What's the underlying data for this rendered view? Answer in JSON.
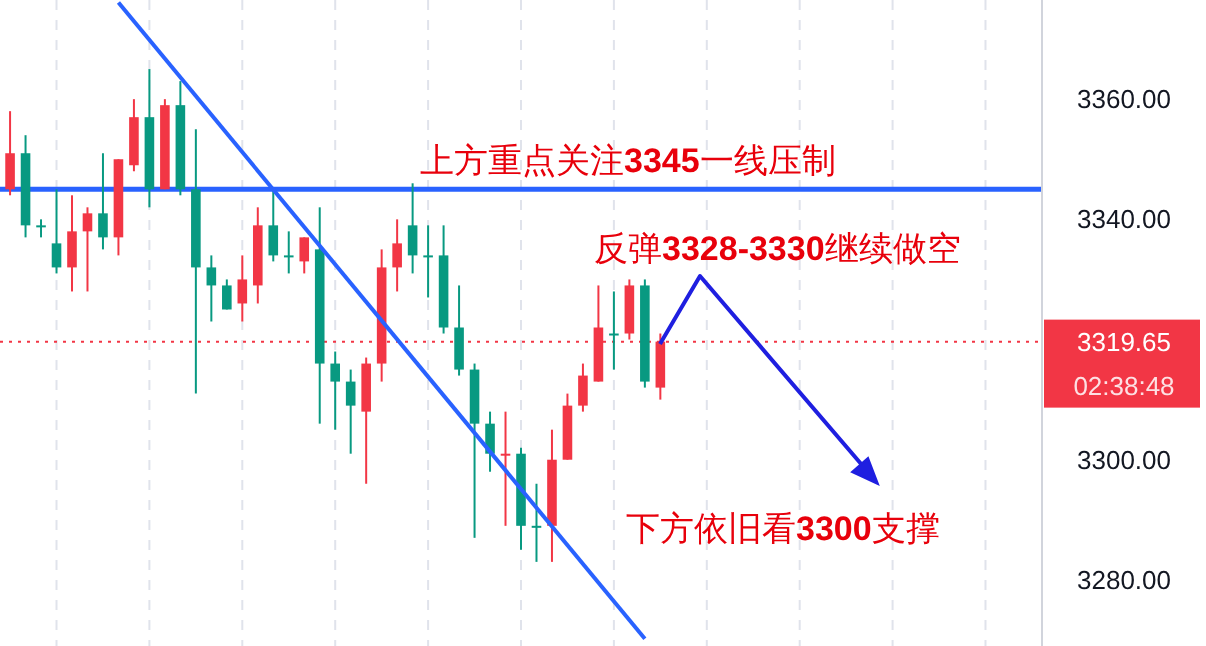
{
  "chart_data": {
    "type": "candlestick",
    "categories": [
      null,
      null,
      null,
      null,
      null,
      null,
      null,
      null,
      null,
      null,
      null,
      null,
      null,
      null,
      null,
      null,
      null,
      null,
      null,
      null,
      null,
      null,
      null,
      null,
      null,
      null,
      null,
      null,
      null,
      null,
      null,
      null,
      null,
      null,
      null,
      null,
      null,
      null,
      null,
      null,
      null,
      null,
      null,
      null,
      null,
      null,
      null,
      null,
      null,
      null,
      null,
      null,
      null,
      null,
      null,
      null,
      null,
      null,
      null,
      null,
      null,
      null,
      null,
      null,
      null,
      null,
      null
    ],
    "ohlc": [
      [
        3345,
        3358,
        3344,
        3351
      ],
      [
        3351,
        3354,
        3337,
        3339
      ],
      [
        3339,
        3340,
        3337,
        3339
      ],
      [
        3336,
        3345,
        3331,
        3332
      ],
      [
        3332,
        3344,
        3328,
        3338
      ],
      [
        3338,
        3342,
        3328,
        3341
      ],
      [
        3341,
        3351,
        3335,
        3337
      ],
      [
        3337,
        3350,
        3334,
        3350
      ],
      [
        3349,
        3360,
        3348,
        3357
      ],
      [
        3357,
        3365,
        3342,
        3345
      ],
      [
        3345,
        3360,
        3345,
        3359
      ],
      [
        3359,
        3363,
        3344,
        3345
      ],
      [
        3345,
        3355,
        3311,
        3332
      ],
      [
        3332,
        3334,
        3323,
        3329
      ],
      [
        3329,
        3330,
        3325,
        3325
      ],
      [
        3326,
        3334,
        3323,
        3330
      ],
      [
        3329,
        3342,
        3326,
        3339
      ],
      [
        3339,
        3345,
        3333,
        3334
      ],
      [
        3334,
        3338,
        3331,
        3334
      ],
      [
        3333,
        3337,
        3331,
        3337
      ],
      [
        3335,
        3342,
        3306,
        3316
      ],
      [
        3316,
        3318,
        3305,
        3313
      ],
      [
        3313,
        3315,
        3301,
        3309
      ],
      [
        3308,
        3317,
        3296,
        3316
      ],
      [
        3316,
        3335,
        3313,
        3332
      ],
      [
        3332,
        3340,
        3328,
        3336
      ],
      [
        3339,
        3346,
        3331,
        3334
      ],
      [
        3334,
        3339,
        3327,
        3334
      ],
      [
        3334,
        3339,
        3321,
        3322
      ],
      [
        3322,
        3329,
        3314,
        3315
      ],
      [
        3315,
        3316,
        3287,
        3306
      ],
      [
        3306,
        3308,
        3298,
        3301
      ],
      [
        3301,
        3308,
        3289,
        3301
      ],
      [
        3301,
        3302,
        3285,
        3289
      ],
      [
        3289,
        3296,
        3283,
        3289
      ],
      [
        3289,
        3305,
        3283,
        3300
      ],
      [
        3300,
        3311,
        3300,
        3309
      ],
      [
        3309,
        3316,
        3308,
        3314
      ],
      [
        3313,
        3329,
        3313,
        3322
      ],
      [
        3321,
        3328,
        3315,
        3321
      ],
      [
        3321,
        3330,
        3320,
        3329
      ],
      [
        3329,
        3330,
        3312,
        3313
      ],
      [
        3312,
        3321,
        3310,
        3319.65
      ],
      null,
      null,
      null,
      null,
      null,
      null,
      null,
      null,
      null,
      null,
      null,
      null,
      null,
      null,
      null,
      null,
      null,
      null,
      null,
      null,
      null,
      null,
      null,
      null
    ],
    "colors": [
      "#f23645",
      "#089981",
      "#089981",
      "#089981",
      "#f23645",
      "#f23645",
      "#089981",
      "#f23645",
      "#f23645",
      "#089981",
      "#f23645",
      "#089981",
      "#089981",
      "#089981",
      "#089981",
      "#f23645",
      "#f23645",
      "#089981",
      "#089981",
      "#f23645",
      "#089981",
      "#089981",
      "#089981",
      "#f23645",
      "#f23645",
      "#f23645",
      "#089981",
      "#089981",
      "#089981",
      "#089981",
      "#089981",
      "#089981",
      "#f23645",
      "#089981",
      "#089981",
      "#f23645",
      "#f23645",
      "#f23645",
      "#f23645",
      "#089981",
      "#f23645",
      "#089981",
      "#f23645",
      null,
      null,
      null,
      null,
      null,
      null,
      null,
      null,
      null,
      null,
      null,
      null,
      null,
      null,
      null,
      null,
      null,
      null,
      null,
      null,
      null,
      null,
      null,
      null
    ],
    "series": [
      {
        "type": "line",
        "values": [
          null,
          null,
          null,
          null,
          null,
          null,
          null,
          3376.1,
          null,
          null,
          null,
          null,
          null,
          null,
          null,
          null,
          null,
          null,
          null,
          null,
          null,
          null,
          null,
          null,
          null,
          null,
          null,
          null,
          null,
          null,
          null,
          null,
          null,
          null,
          null,
          null,
          null,
          null,
          null,
          null,
          null,
          3270.2,
          null,
          null,
          null,
          null,
          null,
          null,
          null,
          null,
          null,
          null,
          null,
          null,
          null,
          null,
          null,
          null,
          null,
          null,
          null,
          null,
          null,
          null,
          null,
          null,
          null
        ],
        "color": "#2962ff"
      }
    ],
    "ylim": [
      3269,
      3376.5
    ],
    "yticks": [
      {
        "value": 3280,
        "label": "3280.00"
      },
      {
        "value": 3300,
        "label": "3300.00"
      },
      {
        "value": 3340,
        "label": "3340.00"
      },
      {
        "value": 3360,
        "label": "3360.00"
      }
    ],
    "grid": "x",
    "ref_lines": [
      {
        "axis": "y",
        "value": 3345,
        "label": null,
        "color": "#2962ff",
        "line_style": "solid"
      },
      {
        "axis": "y",
        "value": 3319.65,
        "label": "3319.65",
        "color": "#f23645",
        "line_style": "dotted"
      }
    ],
    "annotations": [
      "上方重点关注3345一线压制",
      "反弹3328-3330继续做空",
      "下方依旧看3300支撑",
      "02:38:48"
    ]
  }
}
